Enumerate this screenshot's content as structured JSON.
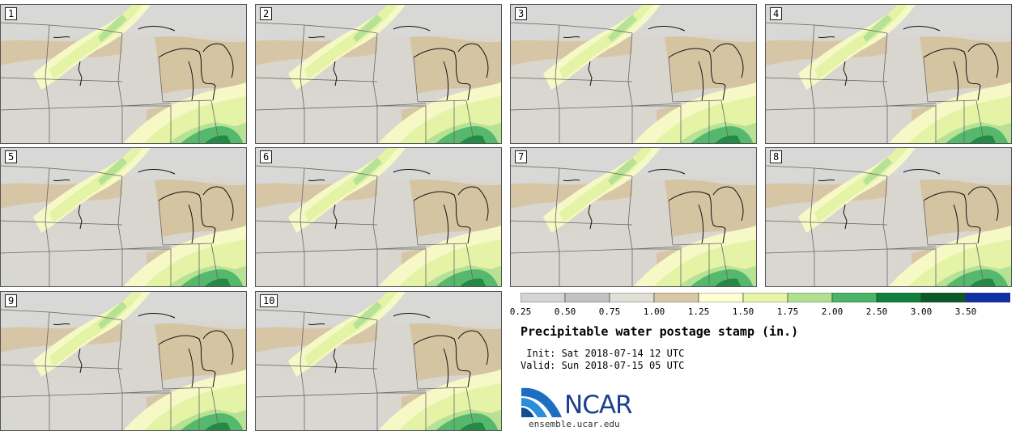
{
  "panels": [
    {
      "label": "1"
    },
    {
      "label": "2"
    },
    {
      "label": "3"
    },
    {
      "label": "4"
    },
    {
      "label": "5"
    },
    {
      "label": "6"
    },
    {
      "label": "7"
    },
    {
      "label": "8"
    },
    {
      "label": "9"
    },
    {
      "label": "10"
    }
  ],
  "colorbar": {
    "ticks": [
      "0.25",
      "0.50",
      "0.75",
      "1.00",
      "1.25",
      "1.50",
      "1.75",
      "2.00",
      "2.50",
      "3.00",
      "3.50"
    ],
    "colors": [
      "#d4d4d4",
      "#c2c2c2",
      "#e0e0d8",
      "#d8c8a8",
      "#ffffd0",
      "#e6f5a8",
      "#b0e090",
      "#4cb466",
      "#10803c",
      "#0a5a28",
      "#1030a8"
    ]
  },
  "title": "Precipitable water postage stamp (in.)",
  "init": " Init: Sat 2018-07-14 12 UTC",
  "valid": "Valid: Sun 2018-07-15 05 UTC",
  "logo": {
    "text": "NCAR",
    "url": "ensemble.ucar.edu"
  }
}
